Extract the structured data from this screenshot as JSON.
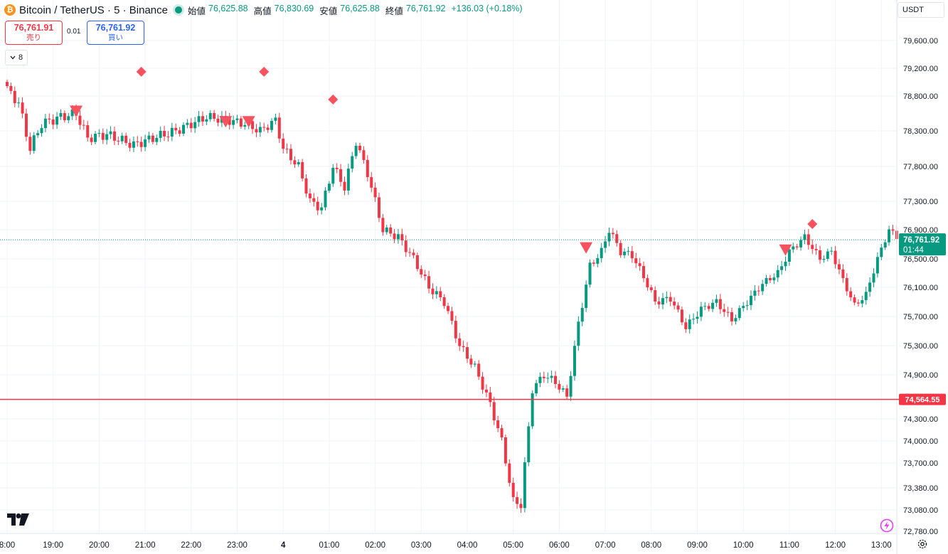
{
  "header": {
    "symbol_title": "Bitcoin / TetherUS · 5 · Binance",
    "coin_icon_glyph": "₿",
    "ohlc": [
      {
        "label": "始値",
        "value": "76,625.88"
      },
      {
        "label": "高値",
        "value": "76,830.69"
      },
      {
        "label": "安値",
        "value": "76,625.88"
      },
      {
        "label": "終値",
        "value": "76,761.92"
      }
    ],
    "change": "+136.03 (+0.18%)"
  },
  "trade": {
    "sell_price": "76,761.91",
    "sell_label": "売り",
    "spread": "0.01",
    "buy_price": "76,761.92",
    "buy_label": "買い"
  },
  "indicators_collapse": {
    "count": "8",
    "icon": "chevron-down-icon"
  },
  "currency": "USDT",
  "price_tag": {
    "price": "76,761.92",
    "countdown": "01:44",
    "value": 76761.92
  },
  "hline": {
    "label": "74,564.55",
    "value": 74564.55
  },
  "colors": {
    "up": "#089981",
    "down": "#f23645",
    "grid": "#f0f3fa",
    "marker": "#f7525f",
    "text": "#131722"
  },
  "chart_data": {
    "type": "candlestick",
    "y_ticks": [
      "79,600.00",
      "79,200.00",
      "78,800.00",
      "78,300.00",
      "77,800.00",
      "77,300.00",
      "76,900.00",
      "76,500.00",
      "76,100.00",
      "75,700.00",
      "75,300.00",
      "74,900.00",
      "74,300.00",
      "74,000.00",
      "73,700.00",
      "73,380.00",
      "73,080.00",
      "72,780.00"
    ],
    "x_ticks": [
      "8:00",
      "19:00",
      "20:00",
      "21:00",
      "22:00",
      "23:00",
      "4",
      "01:00",
      "02:00",
      "03:00",
      "04:00",
      "05:00",
      "06:00",
      "07:00",
      "08:00",
      "09:00",
      "10:00",
      "11:00",
      "12:00",
      "13:00"
    ],
    "x_domain": [
      "18:00",
      "13:10"
    ],
    "y_domain": [
      72700,
      79800
    ],
    "anchors": [
      {
        "t": 0,
        "v": 78900
      },
      {
        "t": 3,
        "v": 78700
      },
      {
        "t": 6,
        "v": 78050
      },
      {
        "t": 9,
        "v": 78400
      },
      {
        "t": 14,
        "v": 78500
      },
      {
        "t": 18,
        "v": 78550
      },
      {
        "t": 21,
        "v": 78200
      },
      {
        "t": 26,
        "v": 78250
      },
      {
        "t": 33,
        "v": 78100
      },
      {
        "t": 38,
        "v": 78200
      },
      {
        "t": 44,
        "v": 78300
      },
      {
        "t": 52,
        "v": 78500
      },
      {
        "t": 58,
        "v": 78450
      },
      {
        "t": 62,
        "v": 78400
      },
      {
        "t": 66,
        "v": 78300
      },
      {
        "t": 70,
        "v": 78450
      },
      {
        "t": 72,
        "v": 78050
      },
      {
        "t": 76,
        "v": 77800
      },
      {
        "t": 79,
        "v": 77300
      },
      {
        "t": 82,
        "v": 77200
      },
      {
        "t": 85,
        "v": 77800
      },
      {
        "t": 88,
        "v": 77500
      },
      {
        "t": 91,
        "v": 78150
      },
      {
        "t": 94,
        "v": 77700
      },
      {
        "t": 98,
        "v": 76900
      },
      {
        "t": 102,
        "v": 76800
      },
      {
        "t": 106,
        "v": 76500
      },
      {
        "t": 110,
        "v": 76100
      },
      {
        "t": 114,
        "v": 75900
      },
      {
        "t": 118,
        "v": 75300
      },
      {
        "t": 122,
        "v": 75000
      },
      {
        "t": 126,
        "v": 74500
      },
      {
        "t": 129,
        "v": 74000
      },
      {
        "t": 132,
        "v": 73200
      },
      {
        "t": 134,
        "v": 73150
      },
      {
        "t": 137,
        "v": 74700
      },
      {
        "t": 140,
        "v": 74900
      },
      {
        "t": 143,
        "v": 74800
      },
      {
        "t": 146,
        "v": 74600
      },
      {
        "t": 149,
        "v": 75600
      },
      {
        "t": 152,
        "v": 76400
      },
      {
        "t": 155,
        "v": 76600
      },
      {
        "t": 157,
        "v": 76900
      },
      {
        "t": 160,
        "v": 76600
      },
      {
        "t": 163,
        "v": 76550
      },
      {
        "t": 166,
        "v": 76250
      },
      {
        "t": 169,
        "v": 75900
      },
      {
        "t": 173,
        "v": 75950
      },
      {
        "t": 177,
        "v": 75550
      },
      {
        "t": 181,
        "v": 75800
      },
      {
        "t": 185,
        "v": 75900
      },
      {
        "t": 189,
        "v": 75650
      },
      {
        "t": 193,
        "v": 75900
      },
      {
        "t": 197,
        "v": 76150
      },
      {
        "t": 201,
        "v": 76300
      },
      {
        "t": 204,
        "v": 76600
      },
      {
        "t": 208,
        "v": 76800
      },
      {
        "t": 212,
        "v": 76500
      },
      {
        "t": 215,
        "v": 76600
      },
      {
        "t": 218,
        "v": 76200
      },
      {
        "t": 221,
        "v": 75850
      },
      {
        "t": 224,
        "v": 76000
      },
      {
        "t": 227,
        "v": 76500
      },
      {
        "t": 230,
        "v": 76900
      },
      {
        "t": 234,
        "v": 76700
      },
      {
        "t": 236,
        "v": 76761.92
      }
    ],
    "sell_markers": [
      {
        "time": "19:30",
        "v": 78580
      },
      {
        "time": "22:45",
        "v": 78430
      },
      {
        "time": "23:15",
        "v": 78430
      },
      {
        "time": "06:35",
        "v": 76650
      },
      {
        "time": "10:55",
        "v": 76620
      }
    ],
    "diamond_markers": [
      {
        "time": "20:55",
        "v": 79150
      },
      {
        "time": "23:35",
        "v": 79150
      },
      {
        "time": "01:05",
        "v": 78750
      },
      {
        "time": "11:30",
        "v": 76980
      }
    ]
  }
}
